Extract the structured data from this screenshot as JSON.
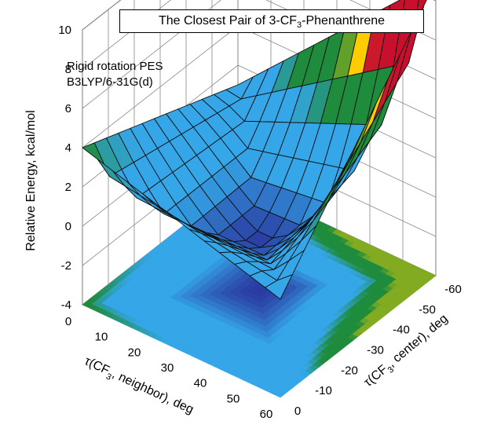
{
  "chart_data": {
    "type": "surface",
    "title": {
      "prefix": "The Closest Pair of 3-CF",
      "sub": "3",
      "suffix": "-Phenanthrene"
    },
    "annotations": [
      "Rigid rotation PES",
      "B3LYP/6-31G(d)"
    ],
    "zlabel": "Relative Energy, kcal/mol",
    "xlabel": {
      "prefix": "τ(CF",
      "sub": "3",
      "suffix": ", neighbor), deg"
    },
    "ylabel": {
      "prefix": "τ(CF",
      "sub": "3",
      "suffix": ", center), deg"
    },
    "x_ticks": [
      "0",
      "10",
      "20",
      "30",
      "40",
      "50",
      "60"
    ],
    "y_ticks": [
      "0",
      "-10",
      "-20",
      "-30",
      "-40",
      "-50",
      "-60"
    ],
    "z_ticks": [
      "-4",
      "-2",
      "0",
      "2",
      "4",
      "6",
      "8",
      "10"
    ],
    "xlim": [
      0,
      60
    ],
    "ylim": [
      -60,
      0
    ],
    "zlim": [
      -4,
      10
    ],
    "grid": true,
    "contour_projection": true,
    "surface_corner_values": {
      "x0_y0": 4.0,
      "x60_y0": 1.0,
      "x0_y-60": 1.0,
      "x60_y-60": 11.0,
      "minimum": -1.5
    },
    "colors": {
      "high": "#c8102e",
      "mid": "#ffd200",
      "lowmid": "#1e8c3c",
      "low": "#35a6e8",
      "min": "#2a3aa0"
    }
  }
}
